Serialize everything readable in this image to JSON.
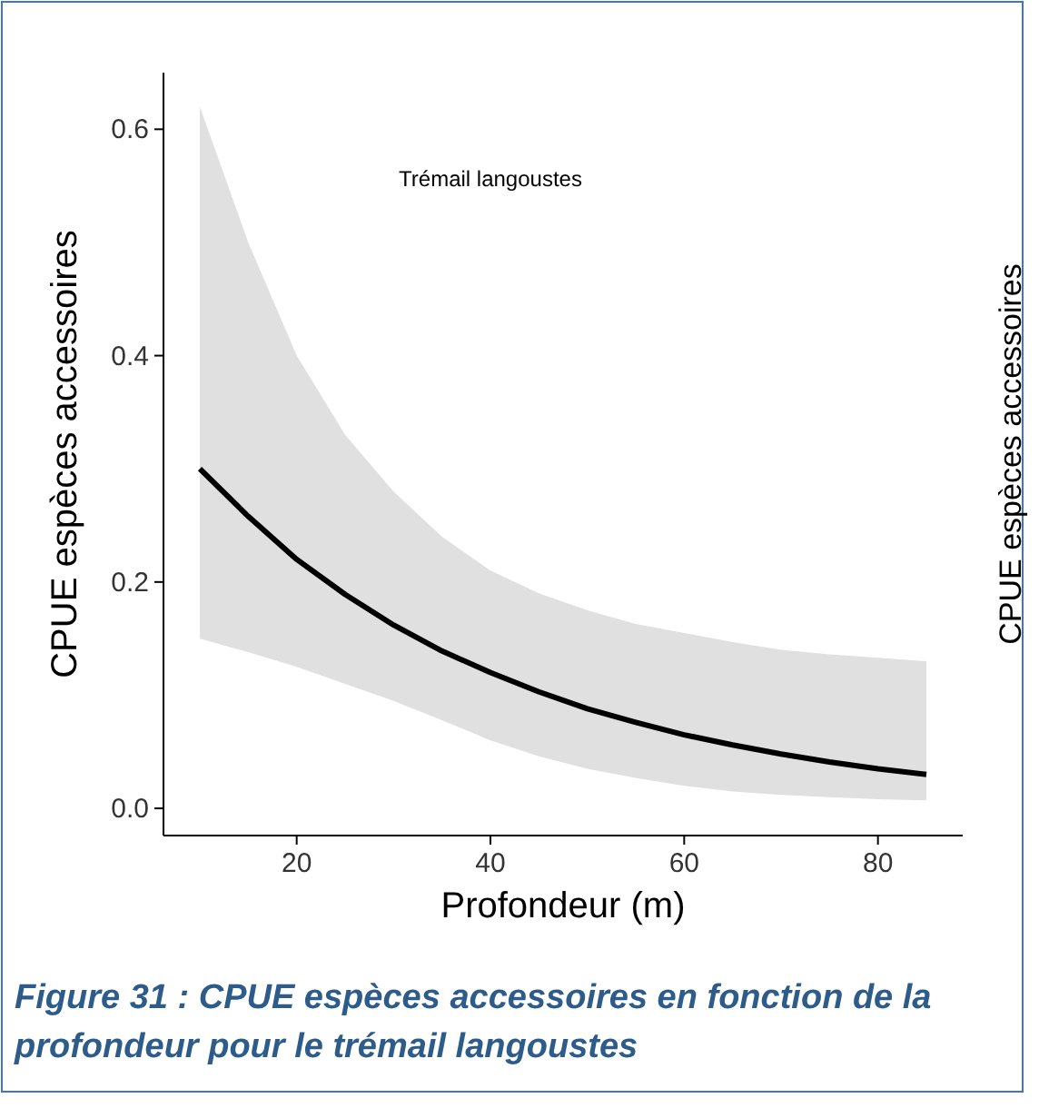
{
  "chart_data": {
    "type": "line",
    "title": "Trémail langoustes",
    "xlabel": "Profondeur (m)",
    "ylabel": "CPUE espèces accessoires",
    "series": [
      {
        "color": "#000000",
        "x": [
          10,
          15,
          20,
          25,
          30,
          35,
          40,
          45,
          50,
          55,
          60,
          65,
          70,
          75,
          80,
          85
        ],
        "values": [
          0.3,
          0.258,
          0.22,
          0.189,
          0.162,
          0.139,
          0.12,
          0.103,
          0.088,
          0.076,
          0.065,
          0.056,
          0.048,
          0.041,
          0.035,
          0.03
        ],
        "lower": [
          0.15,
          0.138,
          0.125,
          0.11,
          0.095,
          0.078,
          0.06,
          0.046,
          0.035,
          0.027,
          0.02,
          0.015,
          0.012,
          0.01,
          0.008,
          0.007
        ],
        "upper": [
          0.62,
          0.5,
          0.4,
          0.33,
          0.28,
          0.24,
          0.21,
          0.19,
          0.175,
          0.163,
          0.155,
          0.147,
          0.14,
          0.136,
          0.133,
          0.13
        ]
      }
    ],
    "xlim": [
      6.25,
      88.75
    ],
    "ylim": [
      -0.024,
      0.65
    ],
    "xticks": [
      20,
      40,
      60,
      80
    ],
    "yticks": [
      {
        "value": 0,
        "label": "0.0"
      },
      {
        "value": 0.2,
        "label": "0.2"
      },
      {
        "value": 0.4,
        "label": "0.4"
      },
      {
        "value": 0.6,
        "label": "0.6"
      }
    ],
    "grid": false,
    "marker": "none",
    "line_style": "solid",
    "annotations": [
      "CPUE espèces accessoires",
      "Figure 31 : CPUE espèces accessoires en fonction de la profondeur pour le trémail langoustes"
    ]
  }
}
